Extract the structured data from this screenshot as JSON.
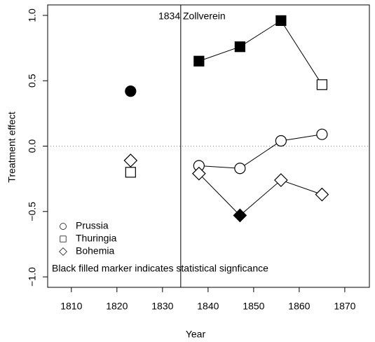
{
  "chart_data": {
    "type": "scatter",
    "x_label": "Year",
    "y_label": "Treatment effect",
    "x": [
      1823,
      1838,
      1847,
      1856,
      1865
    ],
    "xlim": [
      1804.8,
      1875.4
    ],
    "xticks": [
      1810,
      1820,
      1830,
      1840,
      1850,
      1860,
      1870
    ],
    "ylim": [
      -1.08,
      1.08
    ],
    "yticks": [
      {
        "value": -1,
        "label": "−1.0"
      },
      {
        "value": -0.5,
        "label": "−0.5"
      },
      {
        "value": 0,
        "label": "0.0"
      },
      {
        "value": 0.5,
        "label": "0.5"
      },
      {
        "value": 1,
        "label": "1.0"
      }
    ],
    "hline": 0,
    "vline": {
      "x": 1834,
      "label": "1834 Zollverein"
    },
    "annotation": "Black filled marker indicates statistical signficance",
    "legend": "bottom-left",
    "series": [
      {
        "name": "Prussia",
        "marker": "circle",
        "color": "#000000",
        "values": [
          0.42,
          -0.15,
          -0.17,
          0.04,
          0.09
        ],
        "filled": [
          true,
          false,
          false,
          false,
          false
        ]
      },
      {
        "name": "Thuringia",
        "marker": "square",
        "color": "#000000",
        "values": [
          -0.2,
          0.65,
          0.76,
          0.96,
          0.47
        ],
        "filled": [
          false,
          true,
          true,
          true,
          false
        ]
      },
      {
        "name": "Bohemia",
        "marker": "diamond",
        "color": "#000000",
        "values": [
          -0.11,
          -0.21,
          -0.53,
          -0.26,
          -0.37
        ],
        "filled": [
          false,
          false,
          true,
          false,
          false
        ]
      }
    ]
  }
}
